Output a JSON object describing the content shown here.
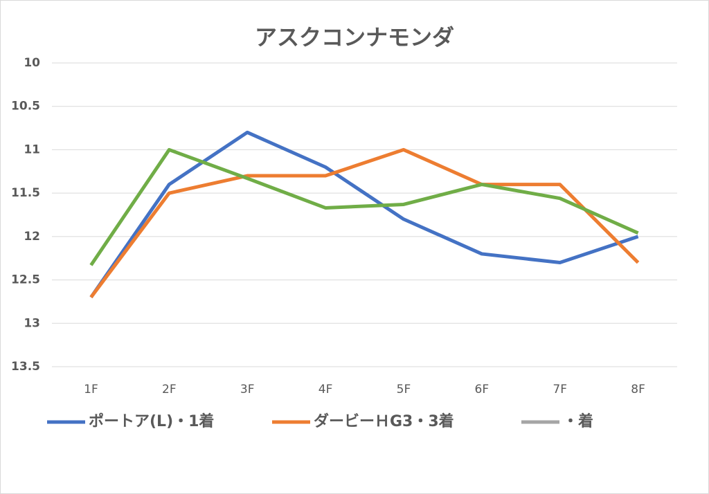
{
  "chart_data": {
    "type": "line",
    "title": "アスクコンナモンダ",
    "categories": [
      "1F",
      "2F",
      "3F",
      "4F",
      "5F",
      "6F",
      "7F",
      "8F"
    ],
    "series": [
      {
        "name": "ポートア(L)・1着",
        "color": "#4472c4",
        "values": [
          12.7,
          11.4,
          10.8,
          11.2,
          11.8,
          12.2,
          12.3,
          12.0
        ]
      },
      {
        "name": "ダービーＨG3・3着",
        "color": "#ed7d31",
        "values": [
          12.7,
          11.5,
          11.3,
          11.3,
          11.0,
          11.4,
          11.4,
          12.3
        ]
      },
      {
        "name": "・着",
        "color": "#a5a5a5",
        "values": [
          null,
          null,
          null,
          null,
          null,
          null,
          null,
          null
        ]
      },
      {
        "color": "#70ad47",
        "values": [
          12.33,
          11.0,
          11.33,
          11.67,
          11.63,
          11.4,
          11.56,
          11.96
        ]
      }
    ],
    "ylim": [
      10,
      13.5
    ],
    "y_reversed": true,
    "yticks": [
      10,
      10.5,
      11,
      11.5,
      12,
      12.5,
      13,
      13.5
    ],
    "grid": true,
    "legend": "bottom"
  }
}
